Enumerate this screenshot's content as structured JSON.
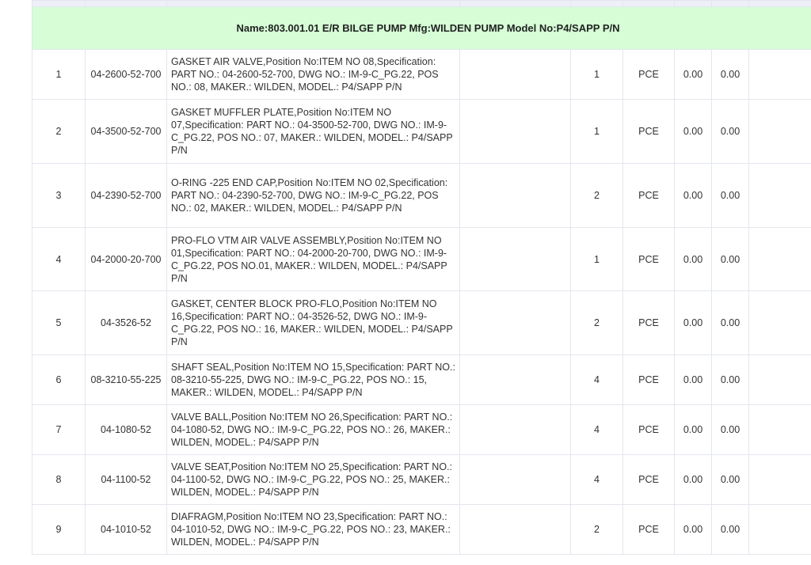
{
  "group_title": "Name:803.001.01 E/R BILGE PUMP Mfg:WILDEN PUMP Model No:P4/SAPP P/N",
  "colors": {
    "group_bg": "#d6fdd6",
    "header_bg": "#eef0f8",
    "border": "#e3e6ee"
  },
  "rows": [
    {
      "no": "1",
      "part": "04-2600-52-700",
      "desc": "GASKET AIR VALVE,Position No:ITEM NO 08,Specification: PART NO.: 04-2600-52-700, DWG NO.: IM-9-C_PG.22, POS NO.: 08, MAKER.: WILDEN, MODEL.: P4/SAPP P/N",
      "qty": "1",
      "unit": "PCE",
      "price": "0.00",
      "amount": "0.00"
    },
    {
      "no": "2",
      "part": "04-3500-52-700",
      "desc": "GASKET MUFFLER PLATE,Position No:ITEM NO 07,Specification: PART NO.: 04-3500-52-700, DWG NO.: IM-9-C_PG.22, POS NO.: 07, MAKER.: WILDEN, MODEL.: P4/SAPP P/N",
      "qty": "1",
      "unit": "PCE",
      "price": "0.00",
      "amount": "0.00"
    },
    {
      "no": "3",
      "part": "04-2390-52-700",
      "desc": "O-RING -225 END CAP,Position No:ITEM NO 02,Specification: PART NO.: 04-2390-52-700, DWG NO.: IM-9-C_PG.22, POS NO.: 02, MAKER.: WILDEN, MODEL.: P4/SAPP P/N",
      "qty": "2",
      "unit": "PCE",
      "price": "0.00",
      "amount": "0.00"
    },
    {
      "no": "4",
      "part": "04-2000-20-700",
      "desc": "PRO-FLO VTM AIR VALVE ASSEMBLY,Position No:ITEM NO 01,Specification: PART NO.: 04-2000-20-700, DWG NO.: IM-9-C_PG.22, POS NO.01, MAKER.: WILDEN, MODEL.: P4/SAPP P/N",
      "qty": "1",
      "unit": "PCE",
      "price": "0.00",
      "amount": "0.00"
    },
    {
      "no": "5",
      "part": "04-3526-52",
      "desc": "GASKET, CENTER BLOCK PRO-FLO,Position No:ITEM NO 16,Specification: PART NO.: 04-3526-52, DWG NO.: IM-9-C_PG.22, POS NO.: 16, MAKER.: WILDEN, MODEL.: P4/SAPP P/N",
      "qty": "2",
      "unit": "PCE",
      "price": "0.00",
      "amount": "0.00"
    },
    {
      "no": "6",
      "part": "08-3210-55-225",
      "desc": "SHAFT SEAL,Position No:ITEM NO 15,Specification: PART NO.: 08-3210-55-225, DWG NO.: IM-9-C_PG.22, POS NO.: 15, MAKER.: WILDEN, MODEL.: P4/SAPP P/N",
      "qty": "4",
      "unit": "PCE",
      "price": "0.00",
      "amount": "0.00"
    },
    {
      "no": "7",
      "part": "04-1080-52",
      "desc": "VALVE BALL,Position No:ITEM NO 26,Specification: PART NO.: 04-1080-52, DWG NO.: IM-9-C_PG.22, POS NO.: 26, MAKER.: WILDEN, MODEL.: P4/SAPP P/N",
      "qty": "4",
      "unit": "PCE",
      "price": "0.00",
      "amount": "0.00"
    },
    {
      "no": "8",
      "part": "04-1100-52",
      "desc": "VALVE SEAT,Position No:ITEM NO 25,Specification: PART NO.: 04-1100-52, DWG NO.: IM-9-C_PG.22, POS NO.: 25, MAKER.: WILDEN, MODEL.: P4/SAPP P/N",
      "qty": "4",
      "unit": "PCE",
      "price": "0.00",
      "amount": "0.00"
    },
    {
      "no": "9",
      "part": "04-1010-52",
      "desc": "DIAFRAGM,Position No:ITEM NO 23,Specification: PART NO.: 04-1010-52, DWG NO.: IM-9-C_PG.22, POS NO.: 23, MAKER.: WILDEN, MODEL.: P4/SAPP P/N",
      "qty": "2",
      "unit": "PCE",
      "price": "0.00",
      "amount": "0.00"
    }
  ]
}
